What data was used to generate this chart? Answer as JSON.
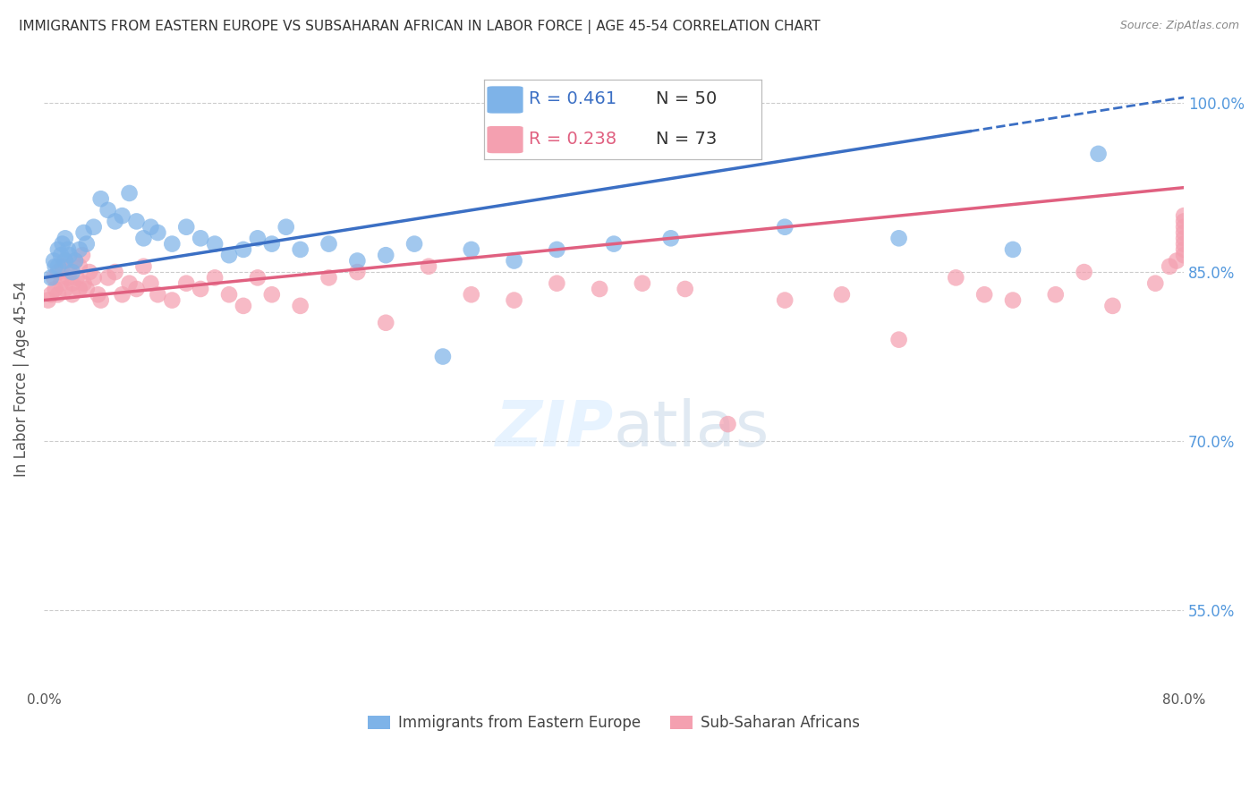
{
  "title": "IMMIGRANTS FROM EASTERN EUROPE VS SUBSAHARAN AFRICAN IN LABOR FORCE | AGE 45-54 CORRELATION CHART",
  "source": "Source: ZipAtlas.com",
  "ylabel": "In Labor Force | Age 45-54",
  "xlim": [
    0.0,
    80.0
  ],
  "ylim": [
    48.0,
    103.0
  ],
  "yticks": [
    55.0,
    70.0,
    85.0,
    100.0
  ],
  "ytick_labels": [
    "55.0%",
    "70.0%",
    "85.0%",
    "100.0%"
  ],
  "xticks": [
    0.0,
    16.0,
    32.0,
    48.0,
    64.0,
    80.0
  ],
  "xtick_labels": [
    "0.0%",
    "",
    "",
    "",
    "",
    "80.0%"
  ],
  "blue_R": 0.461,
  "blue_N": 50,
  "pink_R": 0.238,
  "pink_N": 73,
  "blue_color": "#7EB3E8",
  "pink_color": "#F4A0B0",
  "blue_line_color": "#3B6FC4",
  "pink_line_color": "#E06080",
  "blue_scatter_x": [
    0.5,
    0.7,
    0.8,
    1.0,
    1.0,
    1.2,
    1.3,
    1.5,
    1.5,
    1.7,
    1.8,
    2.0,
    2.2,
    2.5,
    2.8,
    3.0,
    3.5,
    4.0,
    4.5,
    5.0,
    5.5,
    6.0,
    6.5,
    7.0,
    7.5,
    8.0,
    9.0,
    10.0,
    11.0,
    12.0,
    13.0,
    14.0,
    15.0,
    16.0,
    17.0,
    18.0,
    20.0,
    22.0,
    24.0,
    26.0,
    28.0,
    30.0,
    33.0,
    36.0,
    40.0,
    44.0,
    52.0,
    60.0,
    68.0,
    74.0
  ],
  "blue_scatter_y": [
    84.5,
    86.0,
    85.5,
    87.0,
    85.5,
    86.5,
    87.5,
    86.0,
    88.0,
    87.0,
    86.5,
    85.0,
    86.0,
    87.0,
    88.5,
    87.5,
    89.0,
    91.5,
    90.5,
    89.5,
    90.0,
    92.0,
    89.5,
    88.0,
    89.0,
    88.5,
    87.5,
    89.0,
    88.0,
    87.5,
    86.5,
    87.0,
    88.0,
    87.5,
    89.0,
    87.0,
    87.5,
    86.0,
    86.5,
    87.5,
    77.5,
    87.0,
    86.0,
    87.0,
    87.5,
    88.0,
    89.0,
    88.0,
    87.0,
    95.5
  ],
  "pink_scatter_x": [
    0.3,
    0.5,
    0.7,
    0.8,
    1.0,
    1.0,
    1.2,
    1.3,
    1.5,
    1.5,
    1.7,
    1.8,
    2.0,
    2.0,
    2.2,
    2.3,
    2.5,
    2.5,
    2.7,
    2.8,
    3.0,
    3.2,
    3.5,
    3.8,
    4.0,
    4.5,
    5.0,
    5.5,
    6.0,
    6.5,
    7.0,
    7.5,
    8.0,
    9.0,
    10.0,
    11.0,
    12.0,
    13.0,
    14.0,
    15.0,
    16.0,
    18.0,
    20.0,
    22.0,
    24.0,
    27.0,
    30.0,
    33.0,
    36.0,
    39.0,
    42.0,
    45.0,
    48.0,
    52.0,
    56.0,
    60.0,
    64.0,
    66.0,
    68.0,
    71.0,
    73.0,
    75.0,
    78.0,
    79.0,
    79.5,
    80.0,
    80.0,
    80.0,
    80.0,
    80.0,
    80.0,
    80.0,
    80.0
  ],
  "pink_scatter_y": [
    82.5,
    83.0,
    84.5,
    83.5,
    85.0,
    83.0,
    84.0,
    85.5,
    86.0,
    83.5,
    84.5,
    85.0,
    84.0,
    83.0,
    86.0,
    84.5,
    85.5,
    83.5,
    86.5,
    84.0,
    83.5,
    85.0,
    84.5,
    83.0,
    82.5,
    84.5,
    85.0,
    83.0,
    84.0,
    83.5,
    85.5,
    84.0,
    83.0,
    82.5,
    84.0,
    83.5,
    84.5,
    83.0,
    82.0,
    84.5,
    83.0,
    82.0,
    84.5,
    85.0,
    80.5,
    85.5,
    83.0,
    82.5,
    84.0,
    83.5,
    84.0,
    83.5,
    71.5,
    82.5,
    83.0,
    79.0,
    84.5,
    83.0,
    82.5,
    83.0,
    85.0,
    82.0,
    84.0,
    85.5,
    86.0,
    86.5,
    87.0,
    87.5,
    88.0,
    88.5,
    89.0,
    89.5,
    90.0
  ],
  "background_color": "#FFFFFF",
  "grid_color": "#CCCCCC",
  "title_color": "#333333",
  "axis_label_color": "#555555",
  "right_axis_color": "#5599DD"
}
